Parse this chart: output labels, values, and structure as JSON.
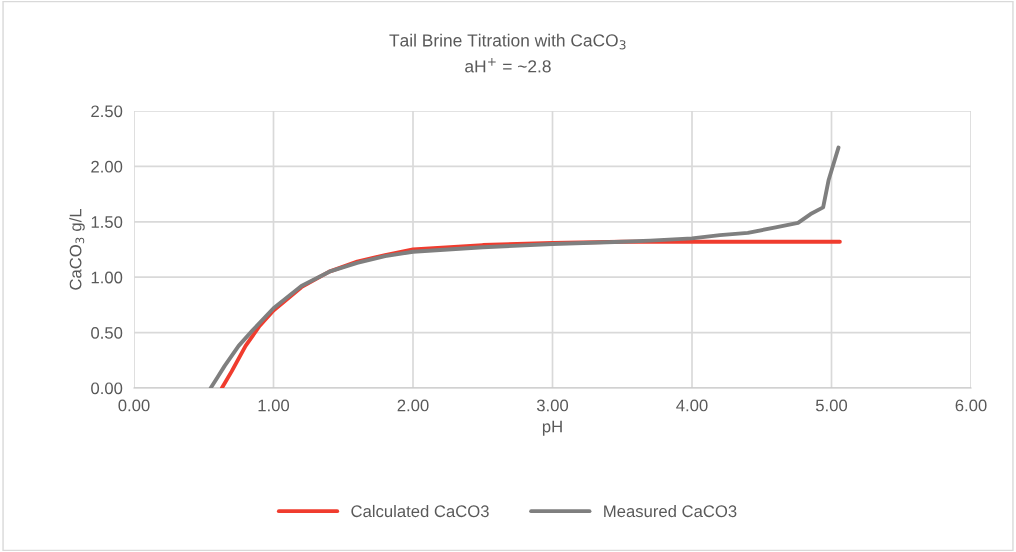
{
  "chart_data": {
    "type": "line",
    "title": "Tail Brine Titration with CaCO$_{3}$",
    "subtitle": "aH$^{+}$ = ~2.8",
    "xlabel": "pH",
    "ylabel": "CaCO$_{3}$ g/L",
    "series": [
      {
        "name": "Calculated CaCO3",
        "color": "#f03c2e",
        "x": [
          0.63,
          0.7,
          0.8,
          0.9,
          1.0,
          1.2,
          1.4,
          1.6,
          1.8,
          2.0,
          2.5,
          3.0,
          3.5,
          4.0,
          5.06
        ],
        "values": [
          0,
          0.15,
          0.38,
          0.56,
          0.7,
          0.91,
          1.05,
          1.14,
          1.2,
          1.25,
          1.29,
          1.31,
          1.32,
          1.32,
          1.32
        ]
      },
      {
        "name": "Measured CaCO3",
        "color": "#7f7f7f",
        "x": [
          0.55,
          0.6,
          0.65,
          0.75,
          0.85,
          1.0,
          1.2,
          1.4,
          1.6,
          1.8,
          2.0,
          2.5,
          3.0,
          3.5,
          3.7,
          4.0,
          4.2,
          4.4,
          4.6,
          4.76,
          4.85,
          4.94,
          4.98,
          5.05
        ],
        "values": [
          0,
          0.1,
          0.2,
          0.38,
          0.52,
          0.72,
          0.92,
          1.05,
          1.13,
          1.19,
          1.23,
          1.27,
          1.3,
          1.32,
          1.33,
          1.35,
          1.38,
          1.4,
          1.45,
          1.49,
          1.57,
          1.63,
          1.88,
          2.17
        ]
      }
    ],
    "xlim": [
      0,
      6
    ],
    "xticks": [
      {
        "value": 0,
        "label": "0.00"
      },
      {
        "value": 1,
        "label": "1.00"
      },
      {
        "value": 2,
        "label": "2.00"
      },
      {
        "value": 3,
        "label": "3.00"
      },
      {
        "value": 4,
        "label": "4.00"
      },
      {
        "value": 5,
        "label": "5.00"
      },
      {
        "value": 6,
        "label": "6.00"
      }
    ],
    "ylim": [
      0,
      2.5
    ],
    "yticks": [
      {
        "value": 0,
        "label": "0.00"
      },
      {
        "value": 0.5,
        "label": "0.50"
      },
      {
        "value": 1,
        "label": "1.00"
      },
      {
        "value": 1.5,
        "label": "1.50"
      },
      {
        "value": 2,
        "label": "2.00"
      },
      {
        "value": 2.5,
        "label": "2.50"
      }
    ],
    "grid": true,
    "legend": "bottom",
    "marker": "none",
    "line_style": "solid"
  }
}
